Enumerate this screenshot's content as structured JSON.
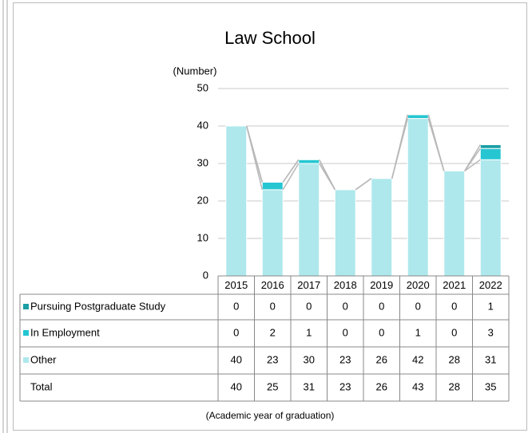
{
  "chart_data": {
    "type": "stacked_bar_table",
    "title": "Law School",
    "y_label": "(Number)",
    "x_label": "(Academic year of graduation)",
    "categories": [
      "2015",
      "2016",
      "2017",
      "2018",
      "2019",
      "2020",
      "2021",
      "2022"
    ],
    "series": [
      {
        "name": "Pursuing Postgraduate Study",
        "color": "#1b9ea4",
        "values": [
          0,
          0,
          0,
          0,
          0,
          0,
          0,
          1
        ]
      },
      {
        "name": "In Employment",
        "color": "#25c6d2",
        "values": [
          0,
          2,
          1,
          0,
          0,
          1,
          0,
          3
        ]
      },
      {
        "name": "Other",
        "color": "#aee8ec",
        "values": [
          40,
          23,
          30,
          23,
          26,
          42,
          28,
          31
        ]
      }
    ],
    "totals": {
      "label": "Total",
      "values": [
        40,
        25,
        31,
        23,
        26,
        43,
        28,
        35
      ]
    },
    "ylim": [
      0,
      50
    ],
    "yticks": [
      0,
      10,
      20,
      30,
      40,
      50
    ],
    "grid": true
  }
}
